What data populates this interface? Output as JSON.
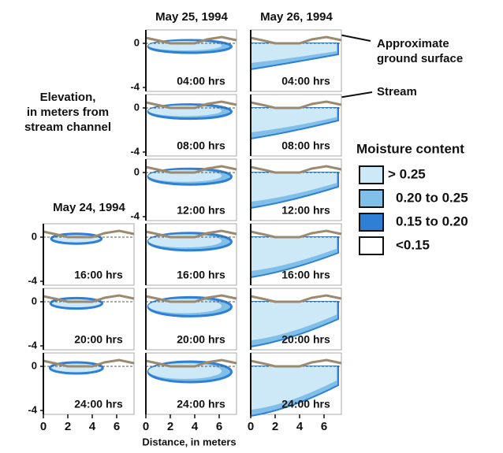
{
  "columns": [
    {
      "date": "May 24, 1994",
      "panels": [
        "16:00 hrs",
        "20:00 hrs",
        "24:00 hrs"
      ]
    },
    {
      "date": "May 25, 1994",
      "panels": [
        "04:00 hrs",
        "08:00 hrs",
        "12:00 hrs",
        "16:00 hrs",
        "20:00 hrs",
        "24:00 hrs"
      ]
    },
    {
      "date": "May 26, 1994",
      "panels": [
        "04:00 hrs",
        "08:00 hrs",
        "12:00 hrs",
        "16:00 hrs",
        "20:00 hrs",
        "24:00 hrs"
      ]
    }
  ],
  "y_axis": {
    "label": [
      "Elevation,",
      "in meters from",
      "stream channel"
    ],
    "ticks": [
      0,
      -4
    ]
  },
  "x_axis": {
    "label": "Distance, in meters",
    "ticks": [
      0,
      2,
      4,
      6
    ]
  },
  "annotations": [
    {
      "text": [
        "Approximate",
        "ground surface"
      ]
    },
    {
      "text": [
        "Stream"
      ]
    }
  ],
  "legend": {
    "title": "Moisture content",
    "items": [
      {
        "label": "> 0.25",
        "color": "#cde8f6"
      },
      {
        "label": "0.20 to 0.25",
        "color": "#7fbfe8"
      },
      {
        "label": "0.15 to 0.20",
        "color": "#2f7fd6"
      },
      {
        "label": "<0.15",
        "color": "#ffffff"
      }
    ]
  }
}
